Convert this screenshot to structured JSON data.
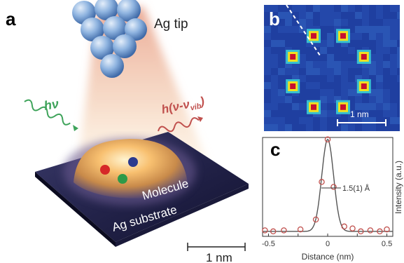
{
  "panel_a": {
    "letter": "a",
    "tip_label": "Ag tip",
    "photon_in_label": "hν",
    "photon_out_label": "h(ν-ν",
    "photon_out_sub": "vib",
    "photon_out_close": ")",
    "molecule_label": "Molecule",
    "substrate_label": "Ag substrate",
    "scale_label": "1 nm",
    "colors": {
      "photon_in": "#3ea35a",
      "photon_out": "#c0504d",
      "tip_spheres": "#7ea7d6",
      "dot_red": "#d62828",
      "dot_blue": "#2b3a8f",
      "dot_green": "#2e9a48"
    }
  },
  "panel_b": {
    "letter": "b",
    "scale_label": "1 nm",
    "colors": {
      "background": "#1f3fa0",
      "spot_core": "#c8102e",
      "spot_ring": "#f0e020"
    }
  },
  "panel_c": {
    "letter": "c",
    "annotation": "1.5(1) Å",
    "chart_data": {
      "type": "scatter",
      "xlabel": "Distance (nm)",
      "ylabel": "Intensity (a.u.)",
      "xlim": [
        -0.55,
        0.55
      ],
      "ylim": [
        0,
        1
      ],
      "xticks": [
        "-0.5",
        "-0.25",
        "0",
        "0.25",
        "0.5"
      ],
      "tick_values": [
        -0.5,
        -0.25,
        0,
        0.25,
        0.5
      ],
      "points": {
        "x": [
          -0.53,
          -0.46,
          -0.37,
          -0.23,
          -0.1,
          -0.05,
          0.0,
          0.05,
          0.14,
          0.21,
          0.28,
          0.36,
          0.44,
          0.5
        ],
        "y": [
          0.06,
          0.05,
          0.06,
          0.07,
          0.17,
          0.55,
          0.98,
          0.5,
          0.1,
          0.08,
          0.05,
          0.06,
          0.05,
          0.07
        ]
      },
      "fit": {
        "type": "gaussian",
        "center": 0.0,
        "sigma": 0.05,
        "amplitude": 0.93,
        "baseline": 0.05
      },
      "colors": {
        "points": "#c0504d",
        "fit": "#555555"
      }
    }
  }
}
